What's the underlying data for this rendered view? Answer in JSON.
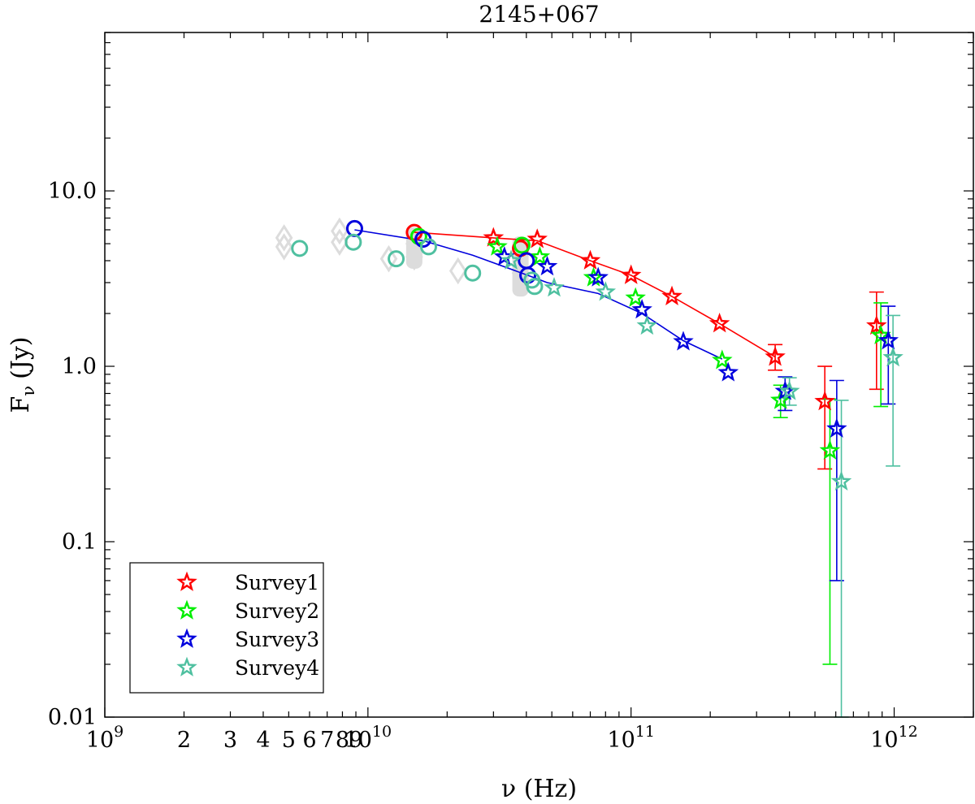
{
  "chart_data": {
    "type": "scatter",
    "title": "2145+067",
    "xlabel": "ν (Hz)",
    "ylabel": "Fν (Jy)",
    "ylabel_main": "F",
    "ylabel_sub": "ν",
    "ylabel_unit": "(Jy)",
    "xscale": "log",
    "yscale": "log",
    "xlim": [
      1000000000.0,
      2000000000000.0
    ],
    "ylim": [
      0.01,
      80
    ],
    "x_ticks": [
      {
        "base": "10",
        "exp": "9",
        "value": 1000000000.0
      },
      {
        "base": "10",
        "exp": "10",
        "value": 10000000000.0
      },
      {
        "base": "10",
        "exp": "11",
        "value": 100000000000.0
      },
      {
        "base": "10",
        "exp": "12",
        "value": 1000000000000.0
      }
    ],
    "y_ticks": [
      {
        "label": "0.01",
        "value": 0.01
      },
      {
        "label": "0.1",
        "value": 0.1
      },
      {
        "label": "1.0",
        "value": 1.0
      },
      {
        "label": "10.0",
        "value": 10.0
      }
    ],
    "legend_position": "bottom-left",
    "grid": false,
    "series": [
      {
        "name": "Survey1",
        "color": "#ff0000",
        "stars": [
          [
            30000000000.0,
            5.4
          ],
          [
            44000000000.0,
            5.3
          ],
          [
            70000000000.0,
            4.0
          ],
          [
            100000000000.0,
            3.3
          ],
          [
            143000000000.0,
            2.5
          ],
          [
            217000000000.0,
            1.75
          ],
          [
            353000000000.0,
            1.13,
            0.95,
            1.33
          ],
          [
            545000000000.0,
            0.63,
            0.26,
            1.0
          ],
          [
            857000000000.0,
            1.7,
            0.74,
            2.65
          ]
        ],
        "circles": [
          [
            15000000000.0,
            5.8
          ],
          [
            38000000000.0,
            4.7
          ]
        ],
        "line": [
          [
            15000000000.0,
            5.8
          ],
          [
            30000000000.0,
            5.4
          ],
          [
            44000000000.0,
            5.2
          ],
          [
            70000000000.0,
            4.0
          ],
          [
            100000000000.0,
            3.3
          ],
          [
            143000000000.0,
            2.5
          ],
          [
            217000000000.0,
            1.75
          ],
          [
            353000000000.0,
            1.13
          ]
        ]
      },
      {
        "name": "Survey2",
        "color": "#00ee00",
        "stars": [
          [
            31000000000.0,
            4.8
          ],
          [
            45000000000.0,
            4.2
          ],
          [
            72000000000.0,
            3.2
          ],
          [
            104000000000.0,
            2.45
          ],
          [
            222000000000.0,
            1.08
          ],
          [
            370000000000.0,
            0.64,
            0.51,
            0.78
          ],
          [
            570000000000.0,
            0.33,
            0.02,
            0.65
          ],
          [
            890000000000.0,
            1.5,
            0.59,
            2.3
          ]
        ],
        "circles": [
          [
            15600000000.0,
            5.5
          ],
          [
            38500000000.0,
            4.9
          ]
        ],
        "line": []
      },
      {
        "name": "Survey3",
        "color": "#0000dd",
        "stars": [
          [
            33000000000.0,
            4.2
          ],
          [
            48000000000.0,
            3.7
          ],
          [
            75000000000.0,
            3.2
          ],
          [
            110000000000.0,
            2.1
          ],
          [
            158000000000.0,
            1.38
          ],
          [
            234000000000.0,
            0.92
          ],
          [
            385000000000.0,
            0.72,
            0.56,
            0.87
          ],
          [
            605000000000.0,
            0.44,
            0.06,
            0.83
          ],
          [
            950000000000.0,
            1.4,
            0.61,
            2.2
          ]
        ],
        "circles": [
          [
            8900000000.0,
            6.1
          ],
          [
            16200000000.0,
            5.3
          ],
          [
            40000000000.0,
            4.0
          ],
          [
            40500000000.0,
            3.3
          ]
        ],
        "line": [
          [
            8900000000.0,
            6.0
          ],
          [
            16200000000.0,
            5.2
          ],
          [
            25000000000.0,
            4.3
          ],
          [
            40500000000.0,
            3.3
          ],
          [
            48000000000.0,
            3.0
          ],
          [
            75000000000.0,
            2.6
          ],
          [
            110000000000.0,
            2.0
          ],
          [
            158000000000.0,
            1.4
          ],
          [
            222000000000.0,
            1.1
          ]
        ]
      },
      {
        "name": "Survey4",
        "color": "#4fc0a0",
        "stars": [
          [
            35000000000.0,
            4.0
          ],
          [
            51000000000.0,
            2.8
          ],
          [
            80000000000.0,
            2.65
          ],
          [
            115000000000.0,
            1.7
          ],
          [
            400000000000.0,
            0.72,
            0.6,
            0.86
          ],
          [
            630000000000.0,
            0.22,
            0.01,
            0.64
          ],
          [
            990000000000.0,
            1.12,
            0.27,
            1.95
          ]
        ],
        "circles": [
          [
            5500000000.0,
            4.7
          ],
          [
            8800000000.0,
            5.1
          ],
          [
            12800000000.0,
            4.1
          ],
          [
            17000000000.0,
            4.8
          ],
          [
            25000000000.0,
            3.4
          ],
          [
            42000000000.0,
            3.1
          ],
          [
            43000000000.0,
            2.85
          ]
        ],
        "line": []
      }
    ],
    "background_points": [
      [
        4800000000.0,
        5.4
      ],
      [
        4800000000.0,
        4.8
      ],
      [
        7800000000.0,
        5.9
      ],
      [
        7800000000.0,
        5.1
      ],
      [
        12000000000.0,
        4.1
      ],
      [
        15000000000.0,
        5.0
      ],
      [
        15000000000.0,
        4.2
      ],
      [
        22000000000.0,
        3.5
      ],
      [
        38000000000.0,
        4.6
      ],
      [
        38000000000.0,
        3.4
      ]
    ],
    "background_bands": [
      [
        15000000000.0,
        3.6,
        6.2
      ],
      [
        38000000000.0,
        2.5,
        5.5
      ]
    ],
    "background_color": "#dcdcdc"
  }
}
